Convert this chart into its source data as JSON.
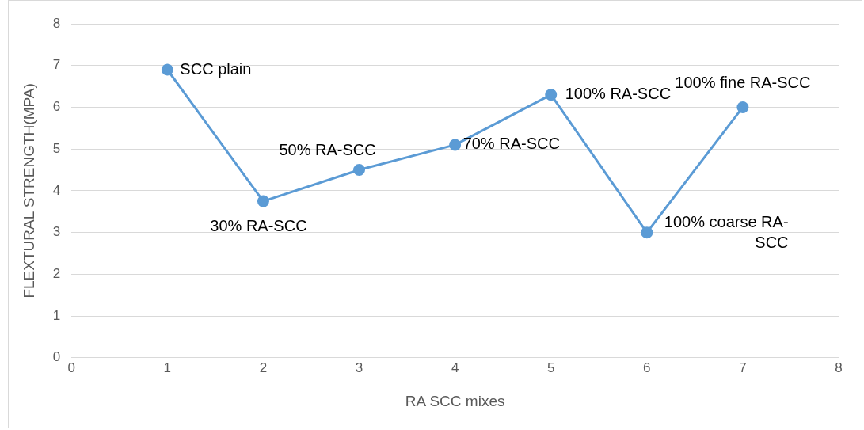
{
  "chart_data": {
    "type": "line",
    "xlabel": "RA SCC mixes",
    "ylabel": "FLEXTURAL STRENGTH(MPA)",
    "x": [
      1,
      2,
      3,
      4,
      5,
      6,
      7
    ],
    "series": [
      {
        "color": "#5b9bd5",
        "values": [
          6.9,
          3.75,
          4.5,
          5.1,
          6.3,
          3.0,
          6.0
        ]
      }
    ],
    "xlim": [
      0,
      8
    ],
    "xticks": [
      0,
      1,
      2,
      3,
      4,
      5,
      6,
      7,
      8
    ],
    "ylim": [
      0,
      8
    ],
    "yticks": [
      0,
      1,
      2,
      3,
      4,
      5,
      6,
      7,
      8
    ],
    "grid": "y",
    "legend": false,
    "marker": "circle",
    "line_style": "solid",
    "annotations": [
      {
        "text": "SCC plain",
        "x": 1,
        "y": 6.9
      },
      {
        "text": "30% RA-SCC",
        "x": 2,
        "y": 3.75
      },
      {
        "text": "50% RA-SCC",
        "x": 3,
        "y": 4.5
      },
      {
        "text": "70% RA-SCC",
        "x": 4,
        "y": 5.1
      },
      {
        "text": "100% RA-SCC",
        "x": 5,
        "y": 6.3
      },
      {
        "text": "100% coarse RA-SCC",
        "x": 6,
        "y": 3.0
      },
      {
        "text": "100% fine RA-SCC",
        "x": 7,
        "y": 6.0
      }
    ]
  }
}
